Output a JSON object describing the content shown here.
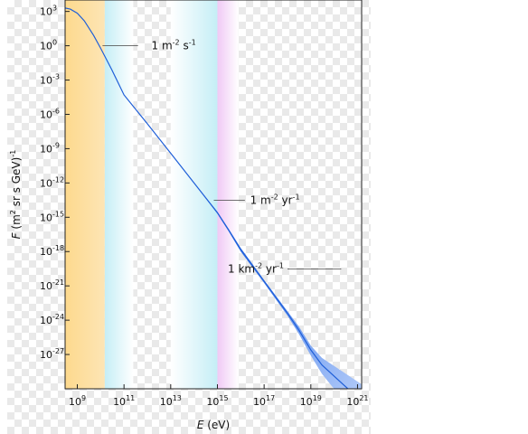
{
  "chart_data": {
    "type": "line",
    "title": "",
    "xlabel": {
      "var": "E",
      "rest": " (eV)"
    },
    "ylabel": {
      "var": "F",
      "rest": " (m",
      "sup1": "2",
      "rest2": " sr s GeV)",
      "sup2": "-1"
    },
    "x_scale": "log",
    "y_scale": "log",
    "xlim": [
      300000000.0,
      1.5e+21
    ],
    "ylim": [
      1e-30,
      10000.0
    ],
    "x_ticks": [
      {
        "base": "10",
        "exp": "9",
        "value": 1000000000.0
      },
      {
        "base": "10",
        "exp": "11",
        "value": 100000000000.0
      },
      {
        "base": "10",
        "exp": "13",
        "value": 10000000000000.0
      },
      {
        "base": "10",
        "exp": "15",
        "value": 1000000000000000.0
      },
      {
        "base": "10",
        "exp": "17",
        "value": 1e+17
      },
      {
        "base": "10",
        "exp": "19",
        "value": 1e+19
      },
      {
        "base": "10",
        "exp": "21",
        "value": 1e+21
      }
    ],
    "y_ticks": [
      {
        "base": "10",
        "exp": "3",
        "value": 1000.0
      },
      {
        "base": "10",
        "exp": "0",
        "value": 1.0
      },
      {
        "base": "10",
        "exp": "-3",
        "value": 0.001
      },
      {
        "base": "10",
        "exp": "-6",
        "value": 1e-06
      },
      {
        "base": "10",
        "exp": "-9",
        "value": 1e-09
      },
      {
        "base": "10",
        "exp": "-12",
        "value": 1e-12
      },
      {
        "base": "10",
        "exp": "-15",
        "value": 1e-15
      },
      {
        "base": "10",
        "exp": "-18",
        "value": 1e-18
      },
      {
        "base": "10",
        "exp": "-21",
        "value": 1e-21
      },
      {
        "base": "10",
        "exp": "-24",
        "value": 1e-24
      },
      {
        "base": "10",
        "exp": "-27",
        "value": 1e-27
      }
    ],
    "series": [
      {
        "x": [
          300000000.0,
          500000000.0,
          1000000000.0,
          2000000000.0,
          5000000000.0,
          10000000000.0,
          30000000000.0,
          100000000000.0,
          1000000000000.0,
          10000000000000.0,
          100000000000000.0,
          1000000000000000.0,
          3000000000000000.0,
          1e+16,
          1e+17,
          1e+18,
          3e+18,
          1e+19,
          3e+19,
          1.5e+21
        ],
        "y": [
          2000,
          1600,
          700,
          150,
          8,
          0.6,
          0.008,
          5e-05,
          1.5e-07,
          4e-10,
          1e-12,
          2.5e-15,
          8e-17,
          1.5e-18,
          2.5e-21,
          4e-24,
          1.5e-25,
          2.5e-27,
          1.2e-28,
          8e-32
        ],
        "y_upper": [
          2000,
          1600,
          700,
          150,
          8,
          0.6,
          0.008,
          5e-05,
          1.5e-07,
          4e-10,
          1.05e-12,
          3e-15,
          1e-16,
          2e-18,
          3.2e-21,
          6e-24,
          3e-25,
          6e-27,
          5e-28,
          2.5e-30
        ],
        "y_lower": [
          2000,
          1600,
          700,
          150,
          8,
          0.6,
          0.008,
          5e-05,
          1.5e-07,
          4e-10,
          9.5e-13,
          2e-15,
          6e-17,
          1e-18,
          1.8e-21,
          2.5e-24,
          7e-26,
          8e-28,
          2e-29,
          1e-33
        ]
      }
    ],
    "bands": [
      {
        "x_from": 300000000.0,
        "x_to": 15000000000.0,
        "colors": [
          "#fdd98d",
          "#fde5b5"
        ],
        "fade": "right"
      },
      {
        "x_from": 15000000000.0,
        "x_to": 250000000000.0,
        "colors": [
          "#c5eef6",
          "#ffffff"
        ],
        "fade": "right"
      },
      {
        "x_from": 10000000000000.0,
        "x_to": 1000000000000000.0,
        "colors": [
          "#ffffff",
          "#c5eef6"
        ],
        "fade": "left"
      },
      {
        "x_from": 1000000000000000.0,
        "x_to": 8000000000000000.0,
        "colors": [
          "#f0c9f5",
          "#ffffff"
        ],
        "fade": "right"
      }
    ],
    "annotations": [
      {
        "parts": [
          {
            "t": "1 m"
          },
          {
            "t": "-2",
            "sup": true
          },
          {
            "t": " s"
          },
          {
            "t": "-1",
            "sup": true
          }
        ],
        "line_x": [
          12000000000.0,
          400000000000.0
        ],
        "y": 1,
        "text_x": 1500000000000.0
      },
      {
        "parts": [
          {
            "t": "1 m"
          },
          {
            "t": "-2",
            "sup": true
          },
          {
            "t": " yr"
          },
          {
            "t": "-1",
            "sup": true
          }
        ],
        "line_x": [
          700000000000000.0,
          1.5e+16
        ],
        "y": 3e-14,
        "text_x": 2.5e+16
      },
      {
        "parts": [
          {
            "t": "1 km"
          },
          {
            "t": "-2",
            "sup": true
          },
          {
            "t": " yr"
          },
          {
            "t": "-1",
            "sup": true
          }
        ],
        "line_x": [
          1e+18,
          2e+20
        ],
        "y": 3e-20,
        "text_x": 7e+17,
        "anchor": "end"
      }
    ],
    "grid": false,
    "colors": {
      "line": "#1f5fd8",
      "band_fill_top": "#2f6ee8",
      "band_fill_bottom": "#bcd2fa",
      "axis": "#222222"
    }
  }
}
